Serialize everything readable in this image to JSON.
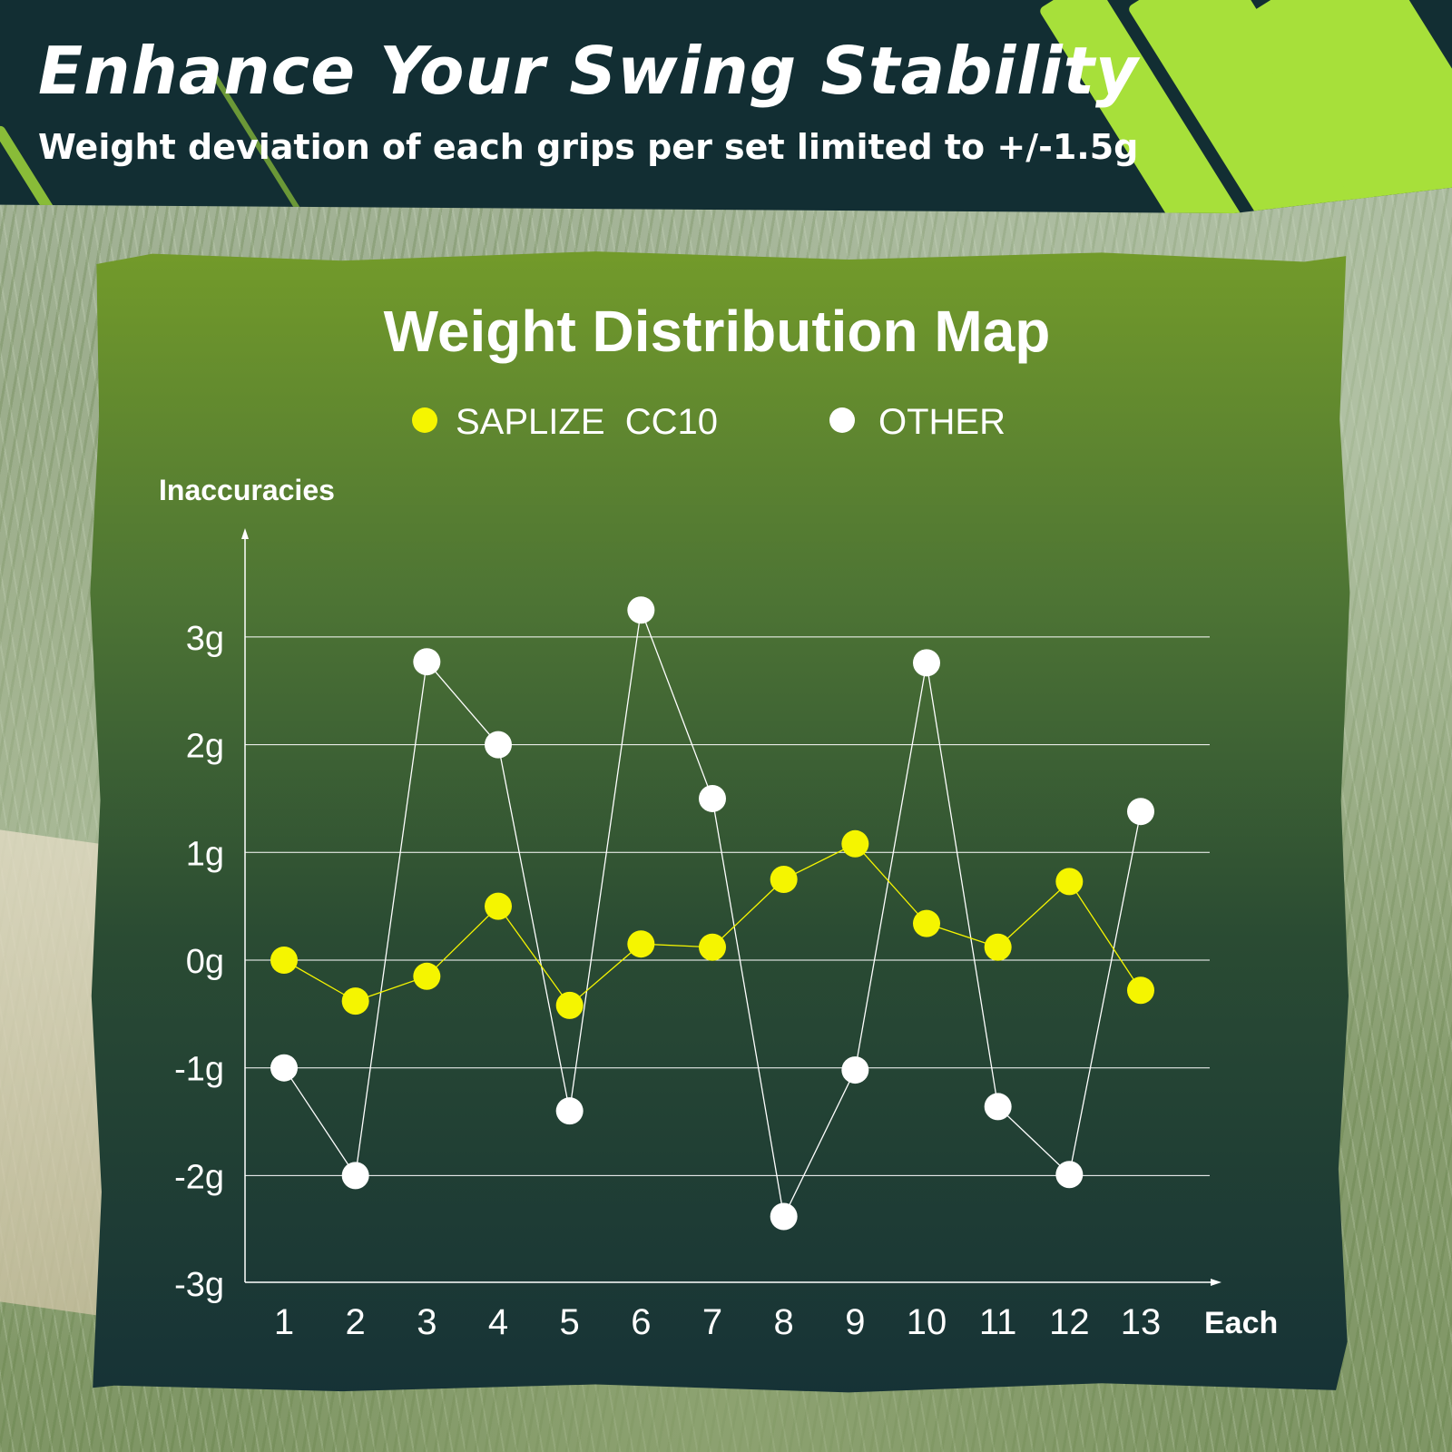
{
  "header": {
    "title": "Enhance Your Swing Stability",
    "subtitle": "Weight deviation of each grips per set limited to +/-1.5g"
  },
  "colors": {
    "header_bg": "#122e33",
    "accent_lime": "#a7e03a",
    "saplize_series": "#f5f500",
    "other_series": "#ffffff"
  },
  "chart_data": {
    "type": "line",
    "title": "Weight Distribution Map",
    "ylabel": "Inaccuracies",
    "xlabel": "Each",
    "categories": [
      "1",
      "2",
      "3",
      "4",
      "5",
      "6",
      "7",
      "8",
      "9",
      "10",
      "11",
      "12",
      "13"
    ],
    "y_ticks": [
      "3g",
      "2g",
      "1g",
      "0g",
      "-1g",
      "-2g",
      "-3g"
    ],
    "ylim": [
      -3,
      3.9
    ],
    "grid": true,
    "legend_position": "top-center",
    "series": [
      {
        "name": "SAPLIZE  CC10",
        "color": "#f5f500",
        "values": [
          0.0,
          -0.38,
          -0.15,
          0.5,
          -0.42,
          0.15,
          0.12,
          0.75,
          1.08,
          0.34,
          0.12,
          0.73,
          -0.28
        ]
      },
      {
        "name": "OTHER",
        "color": "#ffffff",
        "values": [
          -1.0,
          -2.0,
          2.77,
          2.0,
          -1.4,
          3.25,
          1.5,
          -2.38,
          -1.02,
          2.76,
          -1.36,
          -1.99,
          1.38
        ]
      }
    ]
  }
}
